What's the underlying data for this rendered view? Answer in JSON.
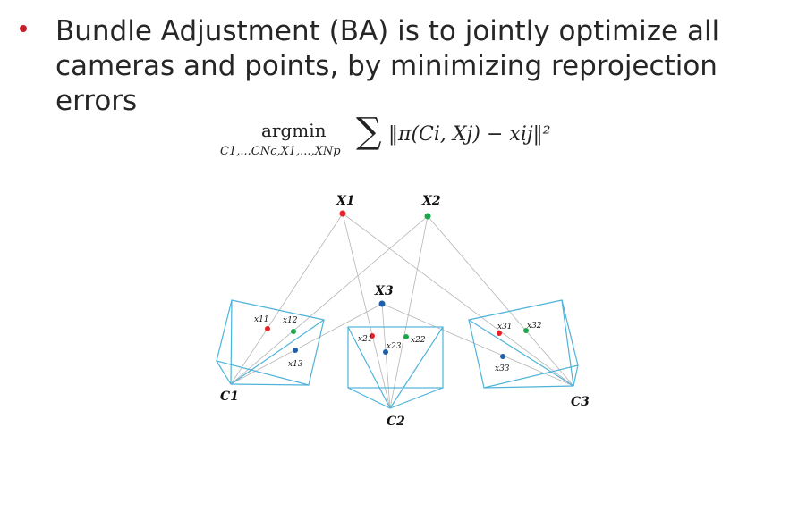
{
  "bullet": {
    "text": "Bundle Adjustment (BA) is to jointly optimize all cameras and points, by minimizing reprojection errors",
    "bullet_color": "#c0202a"
  },
  "formula": {
    "operator": "argmin",
    "subscript": "C1,...CNc,X1,...,XNp",
    "sum_symbol": "∑",
    "expression": "‖π(Ci, Xj) − xij‖²"
  },
  "diagram": {
    "points": [
      {
        "label": "X1",
        "color": "#e8202a"
      },
      {
        "label": "X2",
        "color": "#1aa64a"
      },
      {
        "label": "X3",
        "color": "#1f5fa8"
      }
    ],
    "cameras": [
      {
        "label": "C1"
      },
      {
        "label": "C2"
      },
      {
        "label": "C3"
      }
    ],
    "observations": [
      {
        "label": "x11",
        "color": "#e8202a"
      },
      {
        "label": "x12",
        "color": "#1aa64a"
      },
      {
        "label": "x13",
        "color": "#1f5fa8"
      },
      {
        "label": "x21",
        "color": "#e8202a"
      },
      {
        "label": "x22",
        "color": "#1aa64a"
      },
      {
        "label": "x23",
        "color": "#1f5fa8"
      },
      {
        "label": "x31",
        "color": "#e8202a"
      },
      {
        "label": "x32",
        "color": "#1aa64a"
      },
      {
        "label": "x33",
        "color": "#1f5fa8"
      }
    ],
    "frustum_color": "#4fb3d9",
    "ray_color": "#b5b5b5"
  }
}
